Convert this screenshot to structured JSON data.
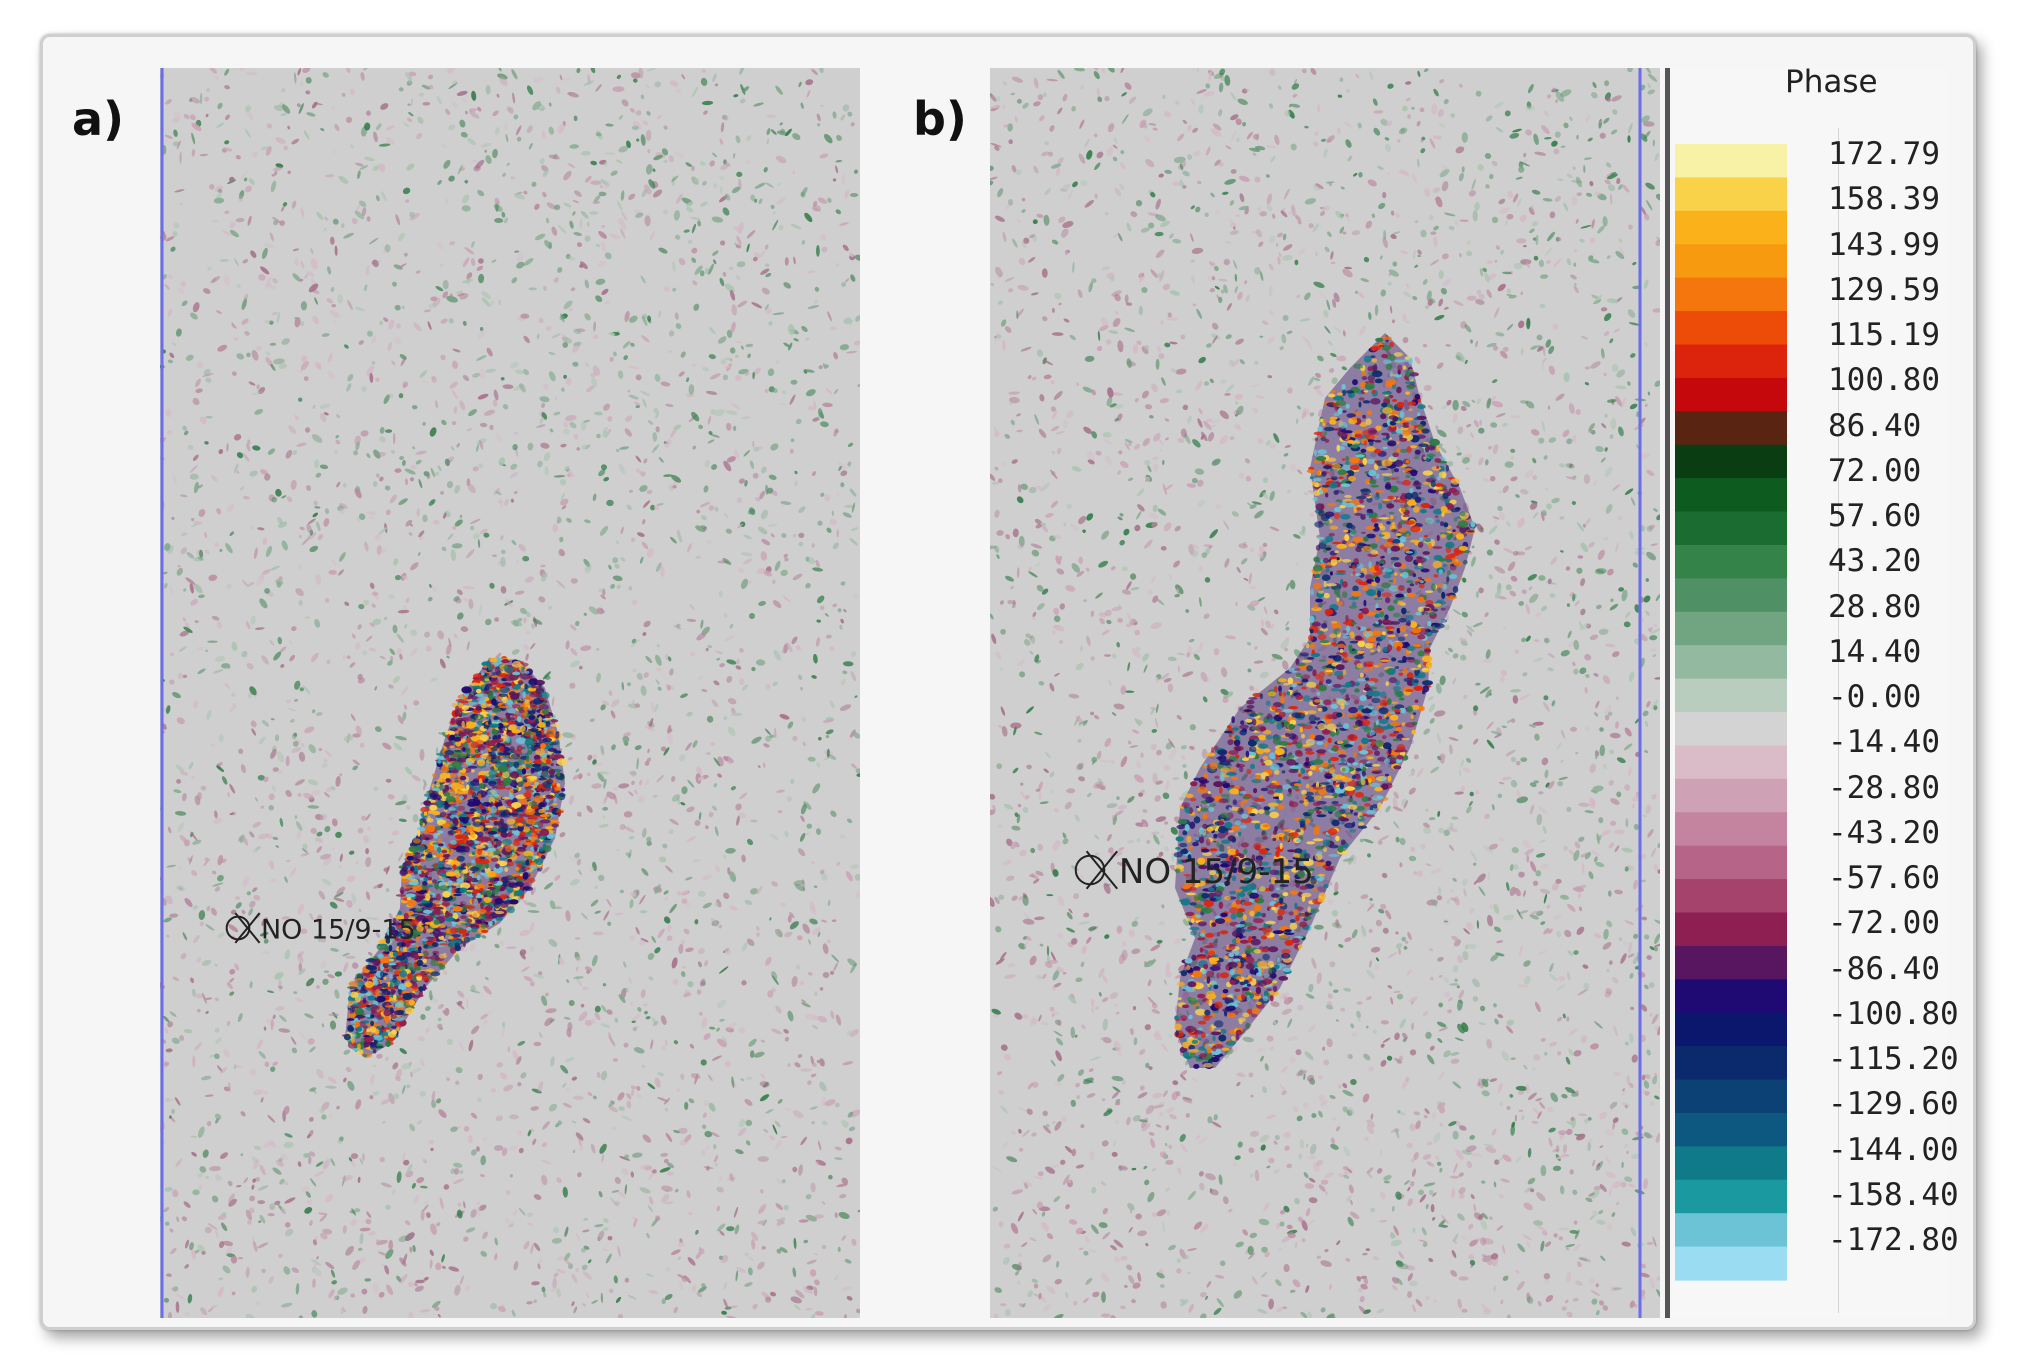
{
  "panels": [
    {
      "label": "a)",
      "well_label": "NO 15/9-15"
    },
    {
      "label": "b)",
      "well_label": "NO 15/9-15"
    }
  ],
  "legend": {
    "title": "Phase",
    "ticks": [
      "172.79",
      "158.39",
      "143.99",
      "129.59",
      "115.19",
      "100.80",
      "86.40",
      "72.00",
      "57.60",
      "43.20",
      "28.80",
      "14.40",
      "-0.00",
      "-14.40",
      "-28.80",
      "-43.20",
      "-57.60",
      "-72.00",
      "-86.40",
      "-100.80",
      "-115.20",
      "-129.60",
      "-144.00",
      "-158.40",
      "-172.80"
    ],
    "colors": [
      "#f8f2a6",
      "#f9d24a",
      "#fbb21a",
      "#f89a10",
      "#f5760d",
      "#ec4c08",
      "#dc240c",
      "#c5080c",
      "#5a2412",
      "#0b3d12",
      "#0d5b1f",
      "#1b6c31",
      "#34844a",
      "#4f9064",
      "#71a481",
      "#93b9a1",
      "#b9cdbf",
      "#d3d3d3",
      "#d9bcc7",
      "#cfa1b5",
      "#c484a0",
      "#b66488",
      "#a6436d",
      "#8d1f52",
      "#591660",
      "#1e0a72",
      "#0b166d",
      "#0b2a6d",
      "#0b4175",
      "#0d5880",
      "#0f7a8a",
      "#1a9aa0",
      "#6cc3d6",
      "#9adcf1"
    ]
  },
  "noise_palette": {
    "background": "#cfcfcf",
    "magenta": [
      "#c9a1b4",
      "#b9889e",
      "#a56e88",
      "#d5b8c5"
    ],
    "green": [
      "#7fa98b",
      "#5f936e",
      "#2e7a45",
      "#a8c3ae"
    ],
    "anomaly": [
      "#1e0a72",
      "#0b2a6d",
      "#591660",
      "#f5760d",
      "#fbb21a",
      "#f9d24a",
      "#0f7a8a",
      "#dc240c",
      "#2e7a45",
      "#8d1f52",
      "#6cc3d6"
    ]
  }
}
